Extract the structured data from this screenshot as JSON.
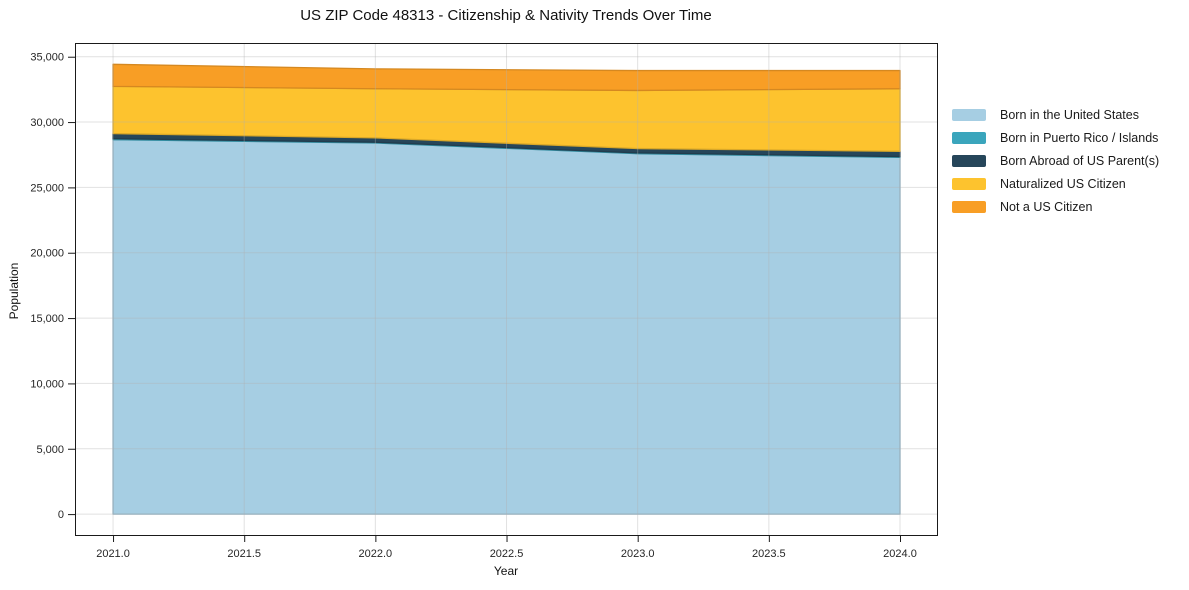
{
  "figure": {
    "background": "#ffffff",
    "axis_color": "#1a1a1a",
    "tick_label_color": "#262626",
    "grid_color_rgba": "rgba(176,176,176,0.38)"
  },
  "chart_data": {
    "type": "area",
    "stacked": true,
    "title": "US ZIP Code 48313 - Citizenship & Nativity Trends Over Time",
    "xlabel": "Year",
    "ylabel": "Population",
    "x": [
      2021,
      2022,
      2023,
      2024
    ],
    "series": [
      {
        "name": "Born in the United States",
        "color": "#a6cee3",
        "values": [
          28650,
          28400,
          27580,
          27300
        ]
      },
      {
        "name": "Born in Puerto Rico / Islands",
        "color": "#3aa5bc",
        "values": [
          80,
          60,
          60,
          60
        ]
      },
      {
        "name": "Born Abroad of US Parent(s)",
        "color": "#26465a",
        "values": [
          390,
          330,
          330,
          400
        ]
      },
      {
        "name": "Naturalized US Citizen",
        "color": "#fdc32e",
        "values": [
          3610,
          3760,
          4450,
          4790
        ]
      },
      {
        "name": "Not a US Citizen",
        "color": "#f89e25",
        "values": [
          1690,
          1520,
          1520,
          1390
        ]
      }
    ],
    "totals": [
      34420,
      34070,
      33940,
      33940
    ],
    "xlim": [
      2020.855,
      2024.141
    ],
    "ylim": [
      -1600,
      36050
    ],
    "x_ticks": [
      2021.0,
      2021.5,
      2022.0,
      2022.5,
      2023.0,
      2023.5,
      2024.0
    ],
    "x_tick_labels": [
      "2021.0",
      "2021.5",
      "2022.0",
      "2022.5",
      "2023.0",
      "2023.5",
      "2024.0"
    ],
    "y_ticks": [
      0,
      5000,
      10000,
      15000,
      20000,
      25000,
      30000,
      35000
    ],
    "y_tick_labels": [
      "0",
      "5,000",
      "10,000",
      "15,000",
      "20,000",
      "25,000",
      "30,000",
      "35,000"
    ],
    "grid": true,
    "legend_position": "right-outside"
  }
}
